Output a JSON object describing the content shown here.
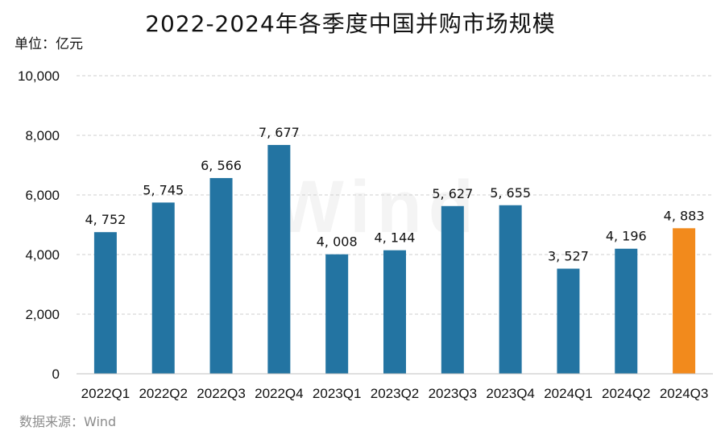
{
  "chart_data": {
    "type": "bar",
    "title": "2022-2024年各季度中国并购市场规模",
    "unit_label": "单位：亿元",
    "source": "数据来源：Wind",
    "watermark": "Wind",
    "categories": [
      "2022Q1",
      "2022Q2",
      "2022Q3",
      "2022Q4",
      "2023Q1",
      "2023Q2",
      "2023Q3",
      "2023Q4",
      "2024Q1",
      "2024Q2",
      "2024Q3"
    ],
    "values": [
      4752,
      5745,
      6566,
      7677,
      4008,
      4144,
      5627,
      5655,
      3527,
      4196,
      4883
    ],
    "value_labels": [
      "4, 752",
      "5, 745",
      "6, 566",
      "7, 677",
      "4, 008",
      "4, 144",
      "5, 627",
      "5, 655",
      "3, 527",
      "4, 196",
      "4, 883"
    ],
    "ylim": [
      0,
      10000
    ],
    "yticks": [
      0,
      2000,
      4000,
      6000,
      8000,
      10000
    ],
    "ytick_labels": [
      "0",
      "2,000",
      "4,000",
      "6,000",
      "8,000",
      "10,000"
    ],
    "grid": true,
    "colors": {
      "default": "#2374a2",
      "highlight": "#f28a1c"
    },
    "highlight_index": 10
  }
}
